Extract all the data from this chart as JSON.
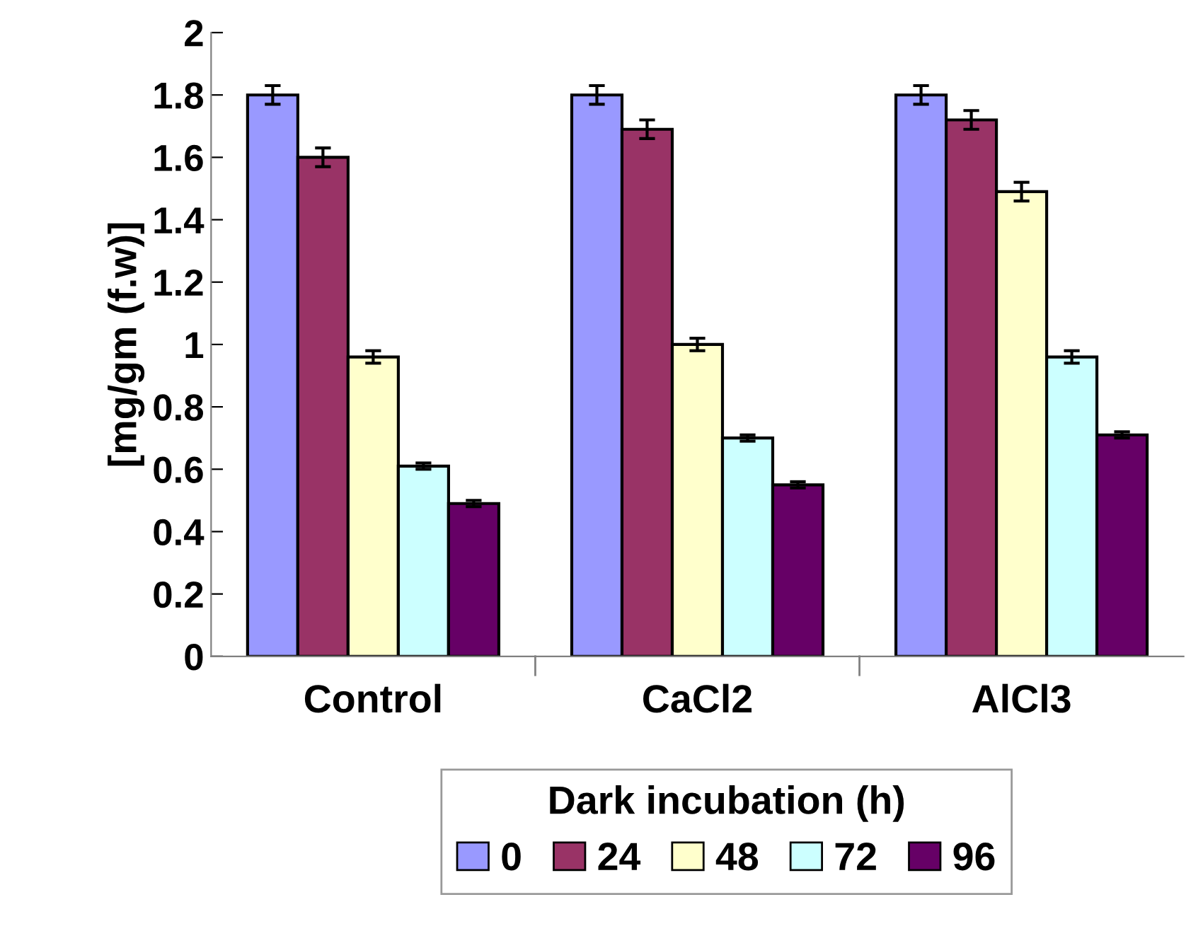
{
  "chart_data": {
    "type": "bar",
    "ylabel": "[mg/gm (f.w)]",
    "legend_title": "Dark incubation (h)",
    "categories": [
      "Control",
      "CaCl2",
      "AlCl3"
    ],
    "series": [
      {
        "name": "0",
        "color": "#9999ff",
        "values": [
          1.8,
          1.8,
          1.8
        ],
        "errors": [
          0.03,
          0.03,
          0.03
        ]
      },
      {
        "name": "24",
        "color": "#993366",
        "values": [
          1.6,
          1.69,
          1.72
        ],
        "errors": [
          0.03,
          0.03,
          0.03
        ]
      },
      {
        "name": "48",
        "color": "#ffffcc",
        "values": [
          0.96,
          1.0,
          1.49
        ],
        "errors": [
          0.02,
          0.02,
          0.03
        ]
      },
      {
        "name": "72",
        "color": "#ccffff",
        "values": [
          0.61,
          0.7,
          0.96
        ],
        "errors": [
          0.01,
          0.01,
          0.02
        ]
      },
      {
        "name": "96",
        "color": "#660066",
        "values": [
          0.49,
          0.55,
          0.71
        ],
        "errors": [
          0.01,
          0.01,
          0.01
        ]
      }
    ],
    "ylim": [
      0,
      2
    ],
    "yticks": [
      0,
      0.2,
      0.4,
      0.6,
      0.8,
      1,
      1.2,
      1.4,
      1.6,
      1.8,
      2
    ],
    "grid": false,
    "legend": "bottom"
  }
}
